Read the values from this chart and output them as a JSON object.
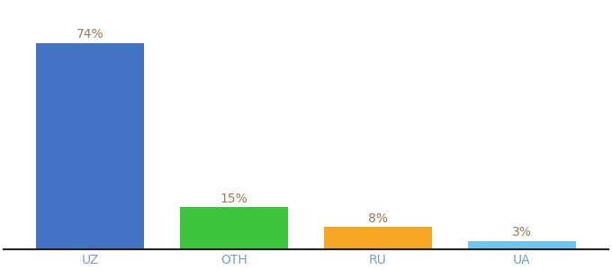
{
  "categories": [
    "UZ",
    "OTH",
    "RU",
    "UA"
  ],
  "values": [
    74,
    15,
    8,
    3
  ],
  "bar_colors": [
    "#4472c4",
    "#3dc43d",
    "#f5a623",
    "#6ec6f0"
  ],
  "labels": [
    "74%",
    "15%",
    "8%",
    "3%"
  ],
  "ylim": [
    0,
    88
  ],
  "label_color": "#a0785a",
  "label_fontsize": 10,
  "tick_fontsize": 10,
  "tick_color": "#7a9abf",
  "background_color": "#ffffff",
  "bar_width": 0.75
}
